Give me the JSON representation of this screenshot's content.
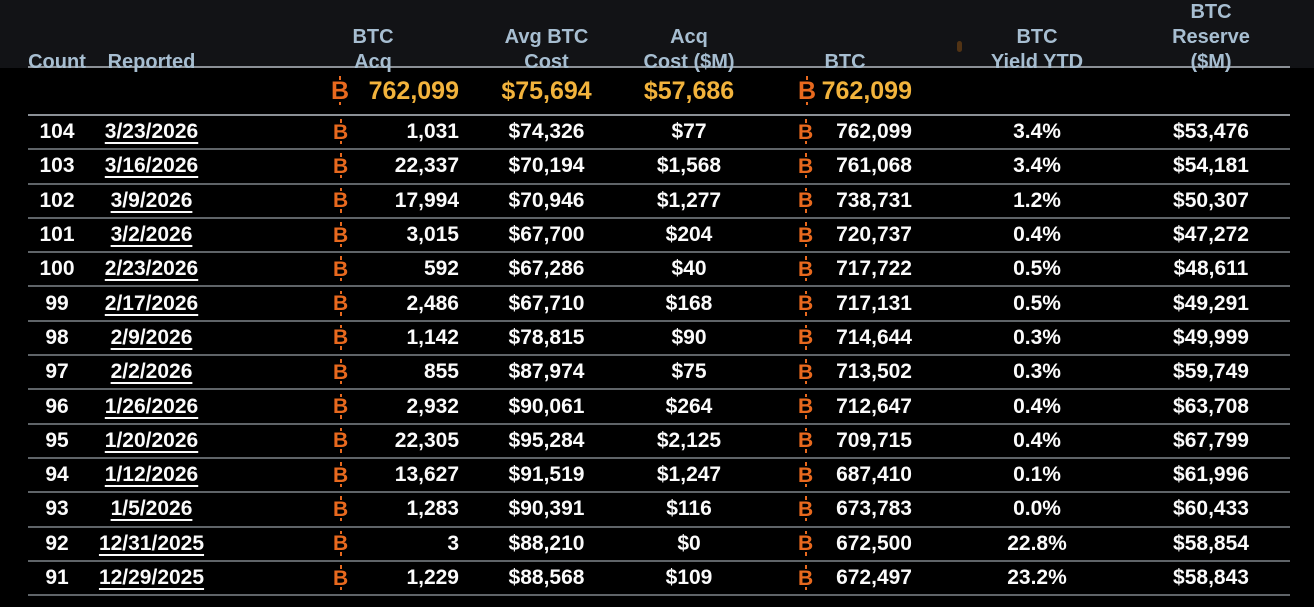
{
  "colors": {
    "background": "#000000",
    "header_text": "#a7bed1",
    "row_text": "#fbfbfb",
    "accent_gold": "#f2b33c",
    "bitcoin_orange": "#e8691e",
    "divider_bright": "#8b9096",
    "divider_dim": "#5f6468"
  },
  "icons": {
    "bitcoin_glyph": "B"
  },
  "table": {
    "columns": [
      {
        "key": "count",
        "label": "Count",
        "lines": [
          "Count"
        ]
      },
      {
        "key": "reported",
        "label": "Reported",
        "lines": [
          "Reported"
        ]
      },
      {
        "key": "btc_acq",
        "label": "BTC Acq",
        "lines": [
          "BTC",
          "Acq"
        ]
      },
      {
        "key": "avg_btc_cost",
        "label": "Avg BTC Cost",
        "lines": [
          "Avg BTC",
          "Cost"
        ]
      },
      {
        "key": "acq_cost_m",
        "label": "Acq Cost ($M)",
        "lines": [
          "Acq",
          "Cost ($M)"
        ]
      },
      {
        "key": "btc",
        "label": "BTC",
        "lines": [
          "BTC"
        ]
      },
      {
        "key": "btc_yield_ytd",
        "label": "BTC Yield YTD",
        "lines": [
          "BTC",
          "Yield YTD"
        ]
      },
      {
        "key": "btc_reserve_m",
        "label": "BTC Reserve ($M)",
        "lines": [
          "BTC",
          "Reserve ($M)"
        ]
      }
    ],
    "summary_row": {
      "btc_acq": "762,099",
      "avg_btc_cost": "$75,694",
      "acq_cost_m": "$57,686",
      "btc": "762,099"
    },
    "rows": [
      {
        "count": "104",
        "reported": "3/23/2026",
        "btc_acq": "1,031",
        "avg_btc_cost": "$74,326",
        "acq_cost_m": "$77",
        "btc": "762,099",
        "btc_yield_ytd": "3.4%",
        "btc_reserve_m": "$53,476"
      },
      {
        "count": "103",
        "reported": "3/16/2026",
        "btc_acq": "22,337",
        "avg_btc_cost": "$70,194",
        "acq_cost_m": "$1,568",
        "btc": "761,068",
        "btc_yield_ytd": "3.4%",
        "btc_reserve_m": "$54,181"
      },
      {
        "count": "102",
        "reported": "3/9/2026",
        "btc_acq": "17,994",
        "avg_btc_cost": "$70,946",
        "acq_cost_m": "$1,277",
        "btc": "738,731",
        "btc_yield_ytd": "1.2%",
        "btc_reserve_m": "$50,307"
      },
      {
        "count": "101",
        "reported": "3/2/2026",
        "btc_acq": "3,015",
        "avg_btc_cost": "$67,700",
        "acq_cost_m": "$204",
        "btc": "720,737",
        "btc_yield_ytd": "0.4%",
        "btc_reserve_m": "$47,272"
      },
      {
        "count": "100",
        "reported": "2/23/2026",
        "btc_acq": "592",
        "avg_btc_cost": "$67,286",
        "acq_cost_m": "$40",
        "btc": "717,722",
        "btc_yield_ytd": "0.5%",
        "btc_reserve_m": "$48,611"
      },
      {
        "count": "99",
        "reported": "2/17/2026",
        "btc_acq": "2,486",
        "avg_btc_cost": "$67,710",
        "acq_cost_m": "$168",
        "btc": "717,131",
        "btc_yield_ytd": "0.5%",
        "btc_reserve_m": "$49,291"
      },
      {
        "count": "98",
        "reported": "2/9/2026",
        "btc_acq": "1,142",
        "avg_btc_cost": "$78,815",
        "acq_cost_m": "$90",
        "btc": "714,644",
        "btc_yield_ytd": "0.3%",
        "btc_reserve_m": "$49,999"
      },
      {
        "count": "97",
        "reported": "2/2/2026",
        "btc_acq": "855",
        "avg_btc_cost": "$87,974",
        "acq_cost_m": "$75",
        "btc": "713,502",
        "btc_yield_ytd": "0.3%",
        "btc_reserve_m": "$59,749"
      },
      {
        "count": "96",
        "reported": "1/26/2026",
        "btc_acq": "2,932",
        "avg_btc_cost": "$90,061",
        "acq_cost_m": "$264",
        "btc": "712,647",
        "btc_yield_ytd": "0.4%",
        "btc_reserve_m": "$63,708"
      },
      {
        "count": "95",
        "reported": "1/20/2026",
        "btc_acq": "22,305",
        "avg_btc_cost": "$95,284",
        "acq_cost_m": "$2,125",
        "btc": "709,715",
        "btc_yield_ytd": "0.4%",
        "btc_reserve_m": "$67,799"
      },
      {
        "count": "94",
        "reported": "1/12/2026",
        "btc_acq": "13,627",
        "avg_btc_cost": "$91,519",
        "acq_cost_m": "$1,247",
        "btc": "687,410",
        "btc_yield_ytd": "0.1%",
        "btc_reserve_m": "$61,996"
      },
      {
        "count": "93",
        "reported": "1/5/2026",
        "btc_acq": "1,283",
        "avg_btc_cost": "$90,391",
        "acq_cost_m": "$116",
        "btc": "673,783",
        "btc_yield_ytd": "0.0%",
        "btc_reserve_m": "$60,433"
      },
      {
        "count": "92",
        "reported": "12/31/2025",
        "btc_acq": "3",
        "avg_btc_cost": "$88,210",
        "acq_cost_m": "$0",
        "btc": "672,500",
        "btc_yield_ytd": "22.8%",
        "btc_reserve_m": "$58,854"
      },
      {
        "count": "91",
        "reported": "12/29/2025",
        "btc_acq": "1,229",
        "avg_btc_cost": "$88,568",
        "acq_cost_m": "$109",
        "btc": "672,497",
        "btc_yield_ytd": "23.2%",
        "btc_reserve_m": "$58,843"
      }
    ]
  }
}
